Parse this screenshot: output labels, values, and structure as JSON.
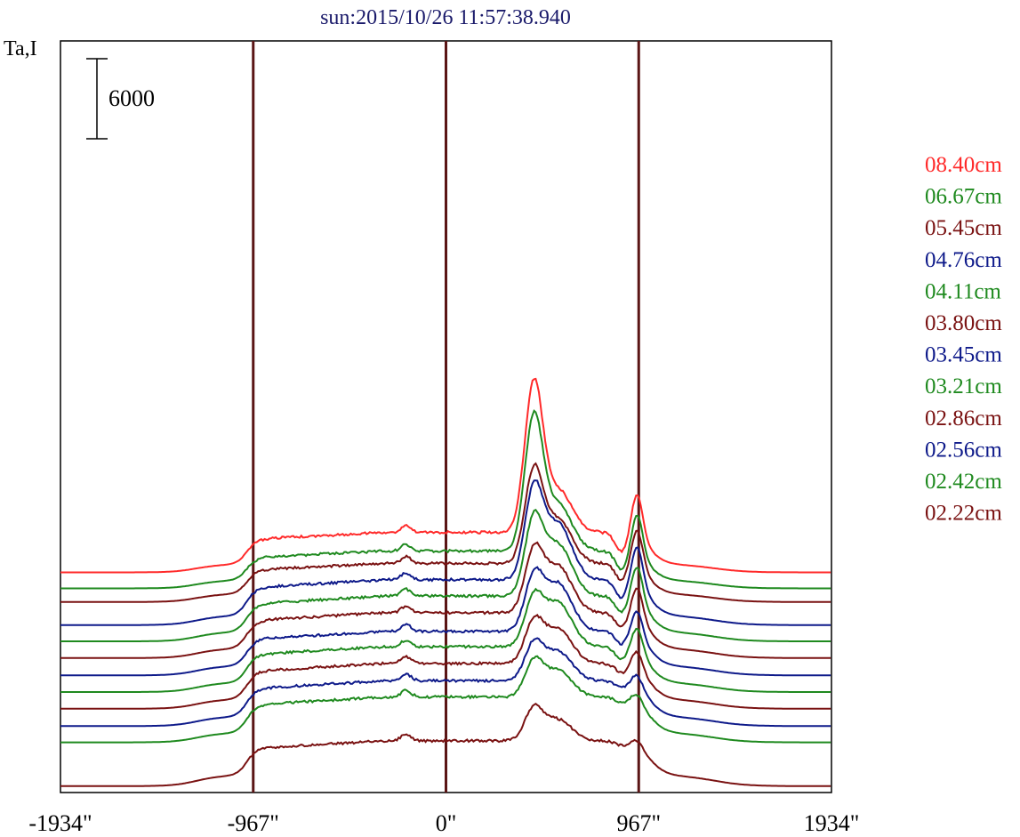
{
  "chart_data": {
    "type": "line",
    "title": "sun:2015/10/26 11:57:38.940",
    "ylabel": "Ta,I",
    "scale_bar_label": "6000",
    "x_ticks": [
      "-1934\"",
      "-967\"",
      "0\"",
      "967\"",
      "1934\""
    ],
    "x_tick_values": [
      -1934,
      -967,
      0,
      967,
      1934
    ],
    "xlim": [
      -1934,
      1934
    ],
    "vertical_lines": [
      -967,
      0,
      967
    ],
    "grid": false,
    "legend_position": "right",
    "colors": {
      "red": "#ff2a2a",
      "green": "#1f8a1f",
      "maroon": "#7a1212",
      "navy": "#0e1a8a",
      "axis": "#000000",
      "vline": "#5a1515"
    },
    "legend": [
      {
        "label": "08.40cm",
        "color": "#ff2a2a"
      },
      {
        "label": "06.67cm",
        "color": "#1f8a1f"
      },
      {
        "label": "05.45cm",
        "color": "#7a1212"
      },
      {
        "label": "04.76cm",
        "color": "#0e1a8a"
      },
      {
        "label": "04.11cm",
        "color": "#1f8a1f"
      },
      {
        "label": "03.80cm",
        "color": "#7a1212"
      },
      {
        "label": "03.45cm",
        "color": "#0e1a8a"
      },
      {
        "label": "03.21cm",
        "color": "#1f8a1f"
      },
      {
        "label": "02.86cm",
        "color": "#7a1212"
      },
      {
        "label": "02.56cm",
        "color": "#0e1a8a"
      },
      {
        "label": "02.42cm",
        "color": "#1f8a1f"
      },
      {
        "label": "02.22cm",
        "color": "#7a1212"
      }
    ],
    "series": [
      {
        "color": "#ff2a2a",
        "baseline": 16500,
        "plateau": 3000,
        "limb": 600,
        "peak1": 10800,
        "peak2": 3200,
        "limbPeak": 3400
      },
      {
        "color": "#1f8a1f",
        "baseline": 15300,
        "plateau": 2800,
        "limb": 600,
        "peak1": 9600,
        "peak2": 3500,
        "limbPeak": 3200
      },
      {
        "color": "#7a1212",
        "baseline": 14280,
        "plateau": 2900,
        "limb": 600,
        "peak1": 6600,
        "peak2": 3300,
        "limbPeak": 3000
      },
      {
        "color": "#0e1a8a",
        "baseline": 12550,
        "plateau": 3400,
        "limb": 700,
        "peak1": 6400,
        "peak2": 4200,
        "limbPeak": 3100
      },
      {
        "color": "#1f8a1f",
        "baseline": 11330,
        "plateau": 3400,
        "limb": 700,
        "peak1": 5400,
        "peak2": 3900,
        "limbPeak": 2800
      },
      {
        "color": "#7a1212",
        "baseline": 10080,
        "plateau": 3400,
        "limb": 700,
        "peak1": 4300,
        "peak2": 3500,
        "limbPeak": 2500
      },
      {
        "color": "#0e1a8a",
        "baseline": 8780,
        "plateau": 3300,
        "limb": 700,
        "peak1": 3800,
        "peak2": 3600,
        "limbPeak": 2100
      },
      {
        "color": "#1f8a1f",
        "baseline": 7530,
        "plateau": 3400,
        "limb": 700,
        "peak1": 3400,
        "peak2": 3300,
        "limbPeak": 2000
      },
      {
        "color": "#7a1212",
        "baseline": 6280,
        "plateau": 3400,
        "limb": 700,
        "peak1": 2900,
        "peak2": 2600,
        "limbPeak": 1500
      },
      {
        "color": "#0e1a8a",
        "baseline": 4980,
        "plateau": 3400,
        "limb": 700,
        "peak1": 2600,
        "peak2": 2200,
        "limbPeak": 1000
      },
      {
        "color": "#1f8a1f",
        "baseline": 3760,
        "plateau": 3400,
        "limb": 700,
        "peak1": 2500,
        "peak2": 2000,
        "limbPeak": 800
      },
      {
        "color": "#7a1212",
        "baseline": 480,
        "plateau": 3400,
        "limb": 800,
        "peak1": 2300,
        "peak2": 1600,
        "limbPeak": 600
      }
    ]
  }
}
